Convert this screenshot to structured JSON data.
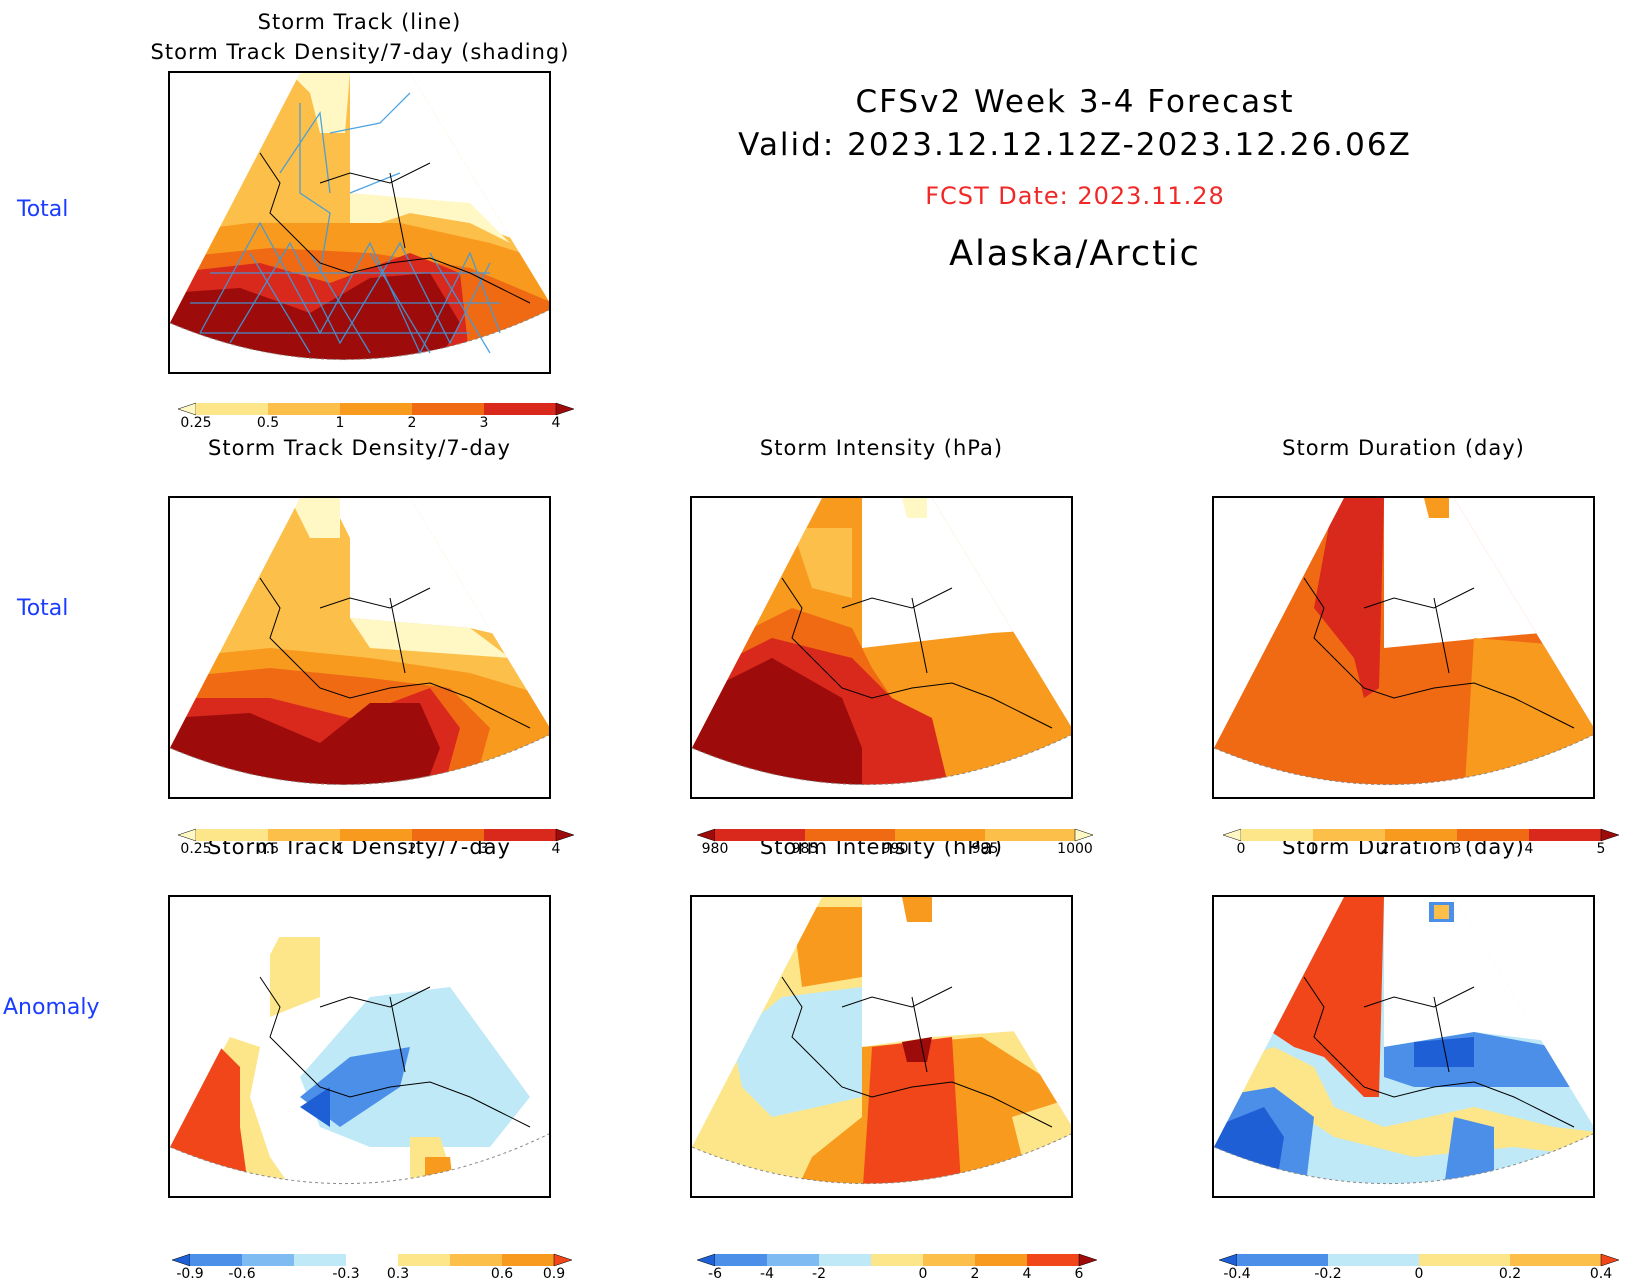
{
  "header": {
    "title": "CFSv2 Week 3-4 Forecast",
    "valid": "Valid: 2023.12.12.12Z-2023.12.26.06Z",
    "fcst_date": "FCST Date: 2023.11.28",
    "region": "Alaska/Arctic"
  },
  "row_labels": [
    "Total",
    "Total",
    "Anomaly"
  ],
  "panels": {
    "top": {
      "title_line1": "Storm Track (line)",
      "title_line2": "Storm Track Density/7-day (shading)"
    },
    "density_total": {
      "title": "Storm Track Density/7-day"
    },
    "intensity_total": {
      "title": "Storm Intensity (hPa)"
    },
    "duration_total": {
      "title": "Storm Duration (day)"
    },
    "density_anom": {
      "title": "Storm Track Density/7-day"
    },
    "intensity_anom": {
      "title": "Storm Intensity (hPa)"
    },
    "duration_anom": {
      "title": "Storm Duration (day)"
    }
  },
  "colorbars": {
    "density": {
      "ticks": [
        "0.25",
        "0.5",
        "1",
        "2",
        "3",
        "4"
      ],
      "colors": [
        "#fff8c4",
        "#fde68a",
        "#fcbf49",
        "#f79a1e",
        "#f06a14",
        "#d9281c",
        "#9e0b0b"
      ]
    },
    "intensity": {
      "ticks": [
        "980",
        "985",
        "990",
        "995",
        "1000"
      ],
      "colors": [
        "#9e0b0b",
        "#d9281c",
        "#f06a14",
        "#f79a1e",
        "#fcbf49",
        "#fff8c4"
      ]
    },
    "duration": {
      "ticks": [
        "0",
        "1",
        "2",
        "3",
        "4",
        "5"
      ],
      "colors": [
        "#fff8c4",
        "#fde68a",
        "#fcbf49",
        "#f79a1e",
        "#f06a14",
        "#d9281c",
        "#9e0b0b"
      ]
    },
    "density_anom": {
      "ticks": [
        "-0.9",
        "-0.6",
        "-0.3",
        "0.3",
        "0.6",
        "0.9"
      ],
      "colors": [
        "#1f5fd6",
        "#4c8fe8",
        "#7dbbf2",
        "#bfe9f7",
        "#ffffff",
        "#fde68a",
        "#fcbf49",
        "#f79a1e",
        "#f0461a"
      ]
    },
    "intensity_anom": {
      "ticks": [
        "-6",
        "-4",
        "-2",
        "0",
        "2",
        "4",
        "6"
      ],
      "colors": [
        "#1f5fd6",
        "#4c8fe8",
        "#7dbbf2",
        "#bfe9f7",
        "#fde68a",
        "#fcbf49",
        "#f79a1e",
        "#f0461a",
        "#9e0b0b"
      ]
    },
    "duration_anom": {
      "ticks": [
        "-0.4",
        "-0.2",
        "0",
        "0.2",
        "0.4"
      ],
      "colors": [
        "#1f5fd6",
        "#4c8fe8",
        "#bfe9f7",
        "#fde68a",
        "#fcbf49",
        "#f0461a"
      ]
    }
  }
}
